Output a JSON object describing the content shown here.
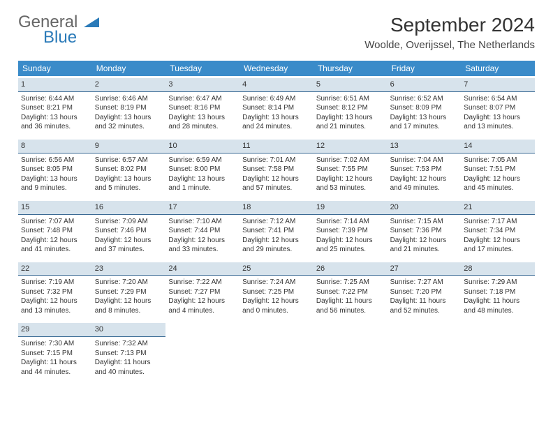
{
  "logo": {
    "text1": "General",
    "text2": "Blue"
  },
  "title": "September 2024",
  "location": "Woolde, Overijssel, The Netherlands",
  "colors": {
    "header_bg": "#3a8bc9",
    "daynum_bg": "#d7e3ec",
    "daynum_border": "#3a6a94",
    "logo_blue": "#2a7ab8"
  },
  "day_headers": [
    "Sunday",
    "Monday",
    "Tuesday",
    "Wednesday",
    "Thursday",
    "Friday",
    "Saturday"
  ],
  "days": [
    {
      "n": "1",
      "sunrise": "Sunrise: 6:44 AM",
      "sunset": "Sunset: 8:21 PM",
      "d1": "Daylight: 13 hours",
      "d2": "and 36 minutes."
    },
    {
      "n": "2",
      "sunrise": "Sunrise: 6:46 AM",
      "sunset": "Sunset: 8:19 PM",
      "d1": "Daylight: 13 hours",
      "d2": "and 32 minutes."
    },
    {
      "n": "3",
      "sunrise": "Sunrise: 6:47 AM",
      "sunset": "Sunset: 8:16 PM",
      "d1": "Daylight: 13 hours",
      "d2": "and 28 minutes."
    },
    {
      "n": "4",
      "sunrise": "Sunrise: 6:49 AM",
      "sunset": "Sunset: 8:14 PM",
      "d1": "Daylight: 13 hours",
      "d2": "and 24 minutes."
    },
    {
      "n": "5",
      "sunrise": "Sunrise: 6:51 AM",
      "sunset": "Sunset: 8:12 PM",
      "d1": "Daylight: 13 hours",
      "d2": "and 21 minutes."
    },
    {
      "n": "6",
      "sunrise": "Sunrise: 6:52 AM",
      "sunset": "Sunset: 8:09 PM",
      "d1": "Daylight: 13 hours",
      "d2": "and 17 minutes."
    },
    {
      "n": "7",
      "sunrise": "Sunrise: 6:54 AM",
      "sunset": "Sunset: 8:07 PM",
      "d1": "Daylight: 13 hours",
      "d2": "and 13 minutes."
    },
    {
      "n": "8",
      "sunrise": "Sunrise: 6:56 AM",
      "sunset": "Sunset: 8:05 PM",
      "d1": "Daylight: 13 hours",
      "d2": "and 9 minutes."
    },
    {
      "n": "9",
      "sunrise": "Sunrise: 6:57 AM",
      "sunset": "Sunset: 8:02 PM",
      "d1": "Daylight: 13 hours",
      "d2": "and 5 minutes."
    },
    {
      "n": "10",
      "sunrise": "Sunrise: 6:59 AM",
      "sunset": "Sunset: 8:00 PM",
      "d1": "Daylight: 13 hours",
      "d2": "and 1 minute."
    },
    {
      "n": "11",
      "sunrise": "Sunrise: 7:01 AM",
      "sunset": "Sunset: 7:58 PM",
      "d1": "Daylight: 12 hours",
      "d2": "and 57 minutes."
    },
    {
      "n": "12",
      "sunrise": "Sunrise: 7:02 AM",
      "sunset": "Sunset: 7:55 PM",
      "d1": "Daylight: 12 hours",
      "d2": "and 53 minutes."
    },
    {
      "n": "13",
      "sunrise": "Sunrise: 7:04 AM",
      "sunset": "Sunset: 7:53 PM",
      "d1": "Daylight: 12 hours",
      "d2": "and 49 minutes."
    },
    {
      "n": "14",
      "sunrise": "Sunrise: 7:05 AM",
      "sunset": "Sunset: 7:51 PM",
      "d1": "Daylight: 12 hours",
      "d2": "and 45 minutes."
    },
    {
      "n": "15",
      "sunrise": "Sunrise: 7:07 AM",
      "sunset": "Sunset: 7:48 PM",
      "d1": "Daylight: 12 hours",
      "d2": "and 41 minutes."
    },
    {
      "n": "16",
      "sunrise": "Sunrise: 7:09 AM",
      "sunset": "Sunset: 7:46 PM",
      "d1": "Daylight: 12 hours",
      "d2": "and 37 minutes."
    },
    {
      "n": "17",
      "sunrise": "Sunrise: 7:10 AM",
      "sunset": "Sunset: 7:44 PM",
      "d1": "Daylight: 12 hours",
      "d2": "and 33 minutes."
    },
    {
      "n": "18",
      "sunrise": "Sunrise: 7:12 AM",
      "sunset": "Sunset: 7:41 PM",
      "d1": "Daylight: 12 hours",
      "d2": "and 29 minutes."
    },
    {
      "n": "19",
      "sunrise": "Sunrise: 7:14 AM",
      "sunset": "Sunset: 7:39 PM",
      "d1": "Daylight: 12 hours",
      "d2": "and 25 minutes."
    },
    {
      "n": "20",
      "sunrise": "Sunrise: 7:15 AM",
      "sunset": "Sunset: 7:36 PM",
      "d1": "Daylight: 12 hours",
      "d2": "and 21 minutes."
    },
    {
      "n": "21",
      "sunrise": "Sunrise: 7:17 AM",
      "sunset": "Sunset: 7:34 PM",
      "d1": "Daylight: 12 hours",
      "d2": "and 17 minutes."
    },
    {
      "n": "22",
      "sunrise": "Sunrise: 7:19 AM",
      "sunset": "Sunset: 7:32 PM",
      "d1": "Daylight: 12 hours",
      "d2": "and 13 minutes."
    },
    {
      "n": "23",
      "sunrise": "Sunrise: 7:20 AM",
      "sunset": "Sunset: 7:29 PM",
      "d1": "Daylight: 12 hours",
      "d2": "and 8 minutes."
    },
    {
      "n": "24",
      "sunrise": "Sunrise: 7:22 AM",
      "sunset": "Sunset: 7:27 PM",
      "d1": "Daylight: 12 hours",
      "d2": "and 4 minutes."
    },
    {
      "n": "25",
      "sunrise": "Sunrise: 7:24 AM",
      "sunset": "Sunset: 7:25 PM",
      "d1": "Daylight: 12 hours",
      "d2": "and 0 minutes."
    },
    {
      "n": "26",
      "sunrise": "Sunrise: 7:25 AM",
      "sunset": "Sunset: 7:22 PM",
      "d1": "Daylight: 11 hours",
      "d2": "and 56 minutes."
    },
    {
      "n": "27",
      "sunrise": "Sunrise: 7:27 AM",
      "sunset": "Sunset: 7:20 PM",
      "d1": "Daylight: 11 hours",
      "d2": "and 52 minutes."
    },
    {
      "n": "28",
      "sunrise": "Sunrise: 7:29 AM",
      "sunset": "Sunset: 7:18 PM",
      "d1": "Daylight: 11 hours",
      "d2": "and 48 minutes."
    },
    {
      "n": "29",
      "sunrise": "Sunrise: 7:30 AM",
      "sunset": "Sunset: 7:15 PM",
      "d1": "Daylight: 11 hours",
      "d2": "and 44 minutes."
    },
    {
      "n": "30",
      "sunrise": "Sunrise: 7:32 AM",
      "sunset": "Sunset: 7:13 PM",
      "d1": "Daylight: 11 hours",
      "d2": "and 40 minutes."
    }
  ]
}
